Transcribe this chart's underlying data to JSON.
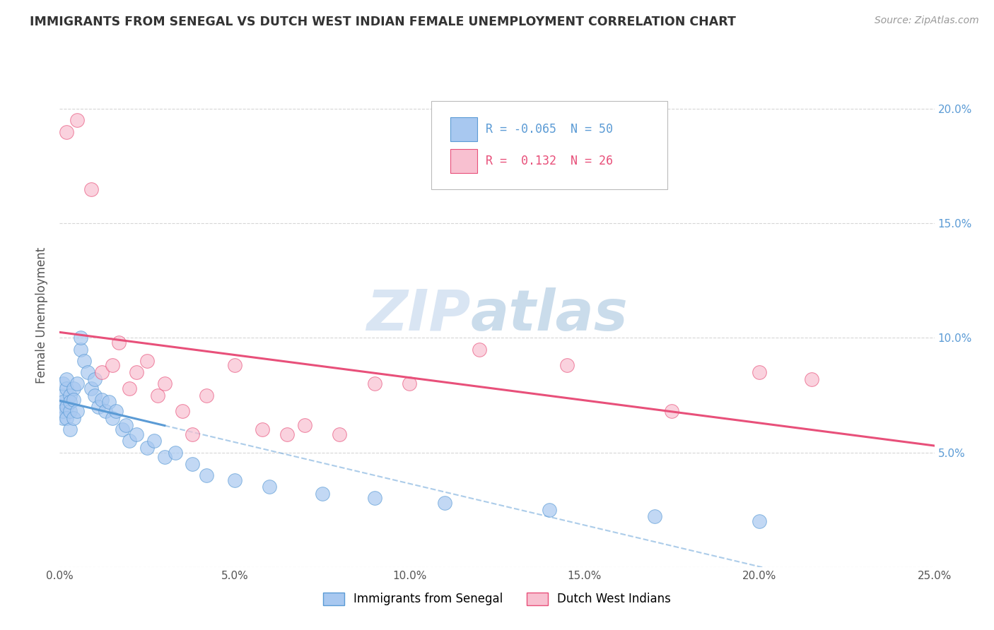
{
  "title": "IMMIGRANTS FROM SENEGAL VS DUTCH WEST INDIAN FEMALE UNEMPLOYMENT CORRELATION CHART",
  "source": "Source: ZipAtlas.com",
  "ylabel": "Female Unemployment",
  "watermark_zip": "ZIP",
  "watermark_atlas": "atlas",
  "xlim": [
    0.0,
    0.25
  ],
  "ylim": [
    0.0,
    0.22
  ],
  "xticks": [
    0.0,
    0.05,
    0.1,
    0.15,
    0.2,
    0.25
  ],
  "xtick_labels": [
    "0.0%",
    "5.0%",
    "10.0%",
    "15.0%",
    "20.0%",
    "25.0%"
  ],
  "yticks": [
    0.0,
    0.05,
    0.1,
    0.15,
    0.2
  ],
  "ytick_labels": [
    "",
    "5.0%",
    "10.0%",
    "15.0%",
    "20.0%"
  ],
  "legend1_label": "Immigrants from Senegal",
  "legend2_label": "Dutch West Indians",
  "series1_color": "#A8C8F0",
  "series2_color": "#F8C0D0",
  "line1_color": "#5B9BD5",
  "line2_color": "#E8507A",
  "R1": -0.065,
  "N1": 50,
  "R2": 0.132,
  "N2": 26,
  "series1_x": [
    0.001,
    0.001,
    0.001,
    0.001,
    0.001,
    0.001,
    0.002,
    0.002,
    0.002,
    0.002,
    0.003,
    0.003,
    0.003,
    0.003,
    0.004,
    0.004,
    0.004,
    0.005,
    0.005,
    0.006,
    0.006,
    0.007,
    0.008,
    0.009,
    0.01,
    0.01,
    0.011,
    0.012,
    0.013,
    0.014,
    0.015,
    0.016,
    0.018,
    0.019,
    0.02,
    0.022,
    0.025,
    0.027,
    0.03,
    0.033,
    0.038,
    0.042,
    0.05,
    0.06,
    0.075,
    0.09,
    0.11,
    0.14,
    0.17,
    0.2
  ],
  "series1_y": [
    0.07,
    0.075,
    0.08,
    0.072,
    0.065,
    0.068,
    0.078,
    0.082,
    0.07,
    0.065,
    0.075,
    0.068,
    0.072,
    0.06,
    0.078,
    0.073,
    0.065,
    0.08,
    0.068,
    0.095,
    0.1,
    0.09,
    0.085,
    0.078,
    0.082,
    0.075,
    0.07,
    0.073,
    0.068,
    0.072,
    0.065,
    0.068,
    0.06,
    0.062,
    0.055,
    0.058,
    0.052,
    0.055,
    0.048,
    0.05,
    0.045,
    0.04,
    0.038,
    0.035,
    0.032,
    0.03,
    0.028,
    0.025,
    0.022,
    0.02
  ],
  "series2_x": [
    0.002,
    0.005,
    0.009,
    0.012,
    0.015,
    0.017,
    0.02,
    0.022,
    0.025,
    0.028,
    0.03,
    0.035,
    0.038,
    0.042,
    0.05,
    0.058,
    0.065,
    0.07,
    0.08,
    0.09,
    0.1,
    0.12,
    0.145,
    0.175,
    0.2,
    0.215
  ],
  "series2_y": [
    0.19,
    0.195,
    0.165,
    0.085,
    0.088,
    0.098,
    0.078,
    0.085,
    0.09,
    0.075,
    0.08,
    0.068,
    0.058,
    0.075,
    0.088,
    0.06,
    0.058,
    0.062,
    0.058,
    0.08,
    0.08,
    0.095,
    0.088,
    0.068,
    0.085,
    0.082
  ],
  "background_color": "#FFFFFF",
  "grid_color": "#CCCCCC",
  "line1_x_solid_end": 0.03,
  "line1_x_dash_start": 0.03
}
